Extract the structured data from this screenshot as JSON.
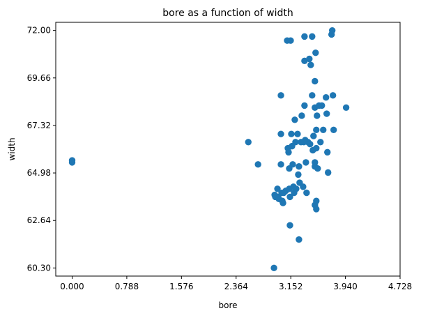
{
  "chart_data": {
    "type": "scatter",
    "title": "bore as a function of width",
    "xlabel": "bore",
    "ylabel": "width",
    "xlim": [
      -0.236,
      4.728
    ],
    "ylim": [
      59.9,
      72.4
    ],
    "xticks": [
      "0.000",
      "0.788",
      "1.576",
      "2.364",
      "3.152",
      "3.940",
      "4.728"
    ],
    "yticks": [
      "60.30",
      "62.64",
      "64.98",
      "67.32",
      "69.66",
      "72.00"
    ],
    "color": "#1f77b4",
    "grid": false,
    "points": [
      [
        0.0,
        65.5
      ],
      [
        0.0,
        65.6
      ],
      [
        2.54,
        66.5
      ],
      [
        2.68,
        65.4
      ],
      [
        2.91,
        60.3
      ],
      [
        2.92,
        63.9
      ],
      [
        2.93,
        63.8
      ],
      [
        2.96,
        64.2
      ],
      [
        2.97,
        63.8
      ],
      [
        2.98,
        63.7
      ],
      [
        3.01,
        68.8
      ],
      [
        3.01,
        66.9
      ],
      [
        3.01,
        65.4
      ],
      [
        3.02,
        64.0
      ],
      [
        3.03,
        63.6
      ],
      [
        3.04,
        63.5
      ],
      [
        3.05,
        64.0
      ],
      [
        3.08,
        64.1
      ],
      [
        3.1,
        71.5
      ],
      [
        3.11,
        66.2
      ],
      [
        3.12,
        66.0
      ],
      [
        3.13,
        65.2
      ],
      [
        3.13,
        64.2
      ],
      [
        3.14,
        63.8
      ],
      [
        3.14,
        62.4
      ],
      [
        3.15,
        71.5
      ],
      [
        3.16,
        66.9
      ],
      [
        3.17,
        66.3
      ],
      [
        3.18,
        65.4
      ],
      [
        3.19,
        64.3
      ],
      [
        3.2,
        64.0
      ],
      [
        3.21,
        67.6
      ],
      [
        3.22,
        66.5
      ],
      [
        3.23,
        64.2
      ],
      [
        3.25,
        66.9
      ],
      [
        3.26,
        64.9
      ],
      [
        3.27,
        61.7
      ],
      [
        3.27,
        65.3
      ],
      [
        3.28,
        64.5
      ],
      [
        3.3,
        66.5
      ],
      [
        3.31,
        67.8
      ],
      [
        3.33,
        64.3
      ],
      [
        3.34,
        66.5
      ],
      [
        3.35,
        71.7
      ],
      [
        3.35,
        70.5
      ],
      [
        3.35,
        68.3
      ],
      [
        3.36,
        66.6
      ],
      [
        3.37,
        65.5
      ],
      [
        3.38,
        64.0
      ],
      [
        3.4,
        66.5
      ],
      [
        3.42,
        70.6
      ],
      [
        3.43,
        66.4
      ],
      [
        3.44,
        70.3
      ],
      [
        3.46,
        71.7
      ],
      [
        3.46,
        68.8
      ],
      [
        3.47,
        66.1
      ],
      [
        3.48,
        66.8
      ],
      [
        3.5,
        69.5
      ],
      [
        3.5,
        68.2
      ],
      [
        3.5,
        65.3
      ],
      [
        3.5,
        63.4
      ],
      [
        3.51,
        70.9
      ],
      [
        3.52,
        67.1
      ],
      [
        3.52,
        66.2
      ],
      [
        3.53,
        67.8
      ],
      [
        3.54,
        65.2
      ],
      [
        3.56,
        68.3
      ],
      [
        3.58,
        66.5
      ],
      [
        3.6,
        68.3
      ],
      [
        3.62,
        67.1
      ],
      [
        3.66,
        68.7
      ],
      [
        3.67,
        67.9
      ],
      [
        3.68,
        66.0
      ],
      [
        3.69,
        65.0
      ],
      [
        3.74,
        71.8
      ],
      [
        3.75,
        72.0
      ],
      [
        3.76,
        68.8
      ],
      [
        3.77,
        67.1
      ],
      [
        3.95,
        68.2
      ],
      [
        3.5,
        65.5
      ],
      [
        3.52,
        63.6
      ],
      [
        3.52,
        63.2
      ]
    ]
  }
}
